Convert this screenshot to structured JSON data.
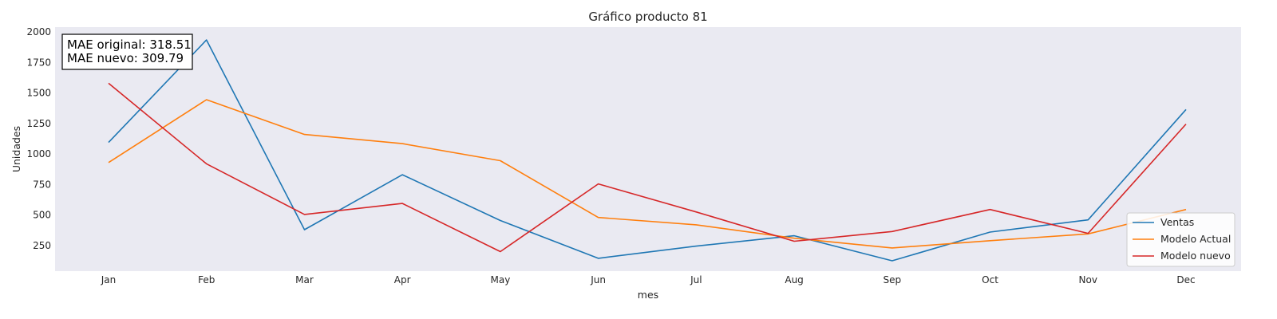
{
  "chart_data": {
    "type": "line",
    "title": "Gráfico producto 81",
    "xlabel": "mes",
    "ylabel": "Unidades",
    "categories": [
      "Jan",
      "Feb",
      "Mar",
      "Apr",
      "May",
      "Jun",
      "Jul",
      "Aug",
      "Sep",
      "Oct",
      "Nov",
      "Dec"
    ],
    "ylim": [
      40,
      2040
    ],
    "yticks": [
      250,
      500,
      750,
      1000,
      1250,
      1500,
      1750,
      2000
    ],
    "grid": false,
    "legend_position": "bottom-right",
    "series": [
      {
        "name": "Ventas",
        "color": "#1f77b4",
        "values": [
          1095,
          1935,
          380,
          830,
          455,
          145,
          245,
          330,
          125,
          360,
          460,
          1365
        ]
      },
      {
        "name": "Modelo Actual",
        "color": "#ff7f0e",
        "values": [
          930,
          1445,
          1160,
          1085,
          945,
          480,
          420,
          310,
          230,
          290,
          345,
          545
        ]
      },
      {
        "name": "Modelo nuevo",
        "color": "#d62728",
        "values": [
          1580,
          920,
          505,
          595,
          200,
          755,
          525,
          285,
          365,
          545,
          350,
          1245
        ]
      }
    ],
    "annotation": {
      "lines": [
        "MAE original: 318.51",
        "MAE nuevo: 309.79"
      ]
    }
  }
}
